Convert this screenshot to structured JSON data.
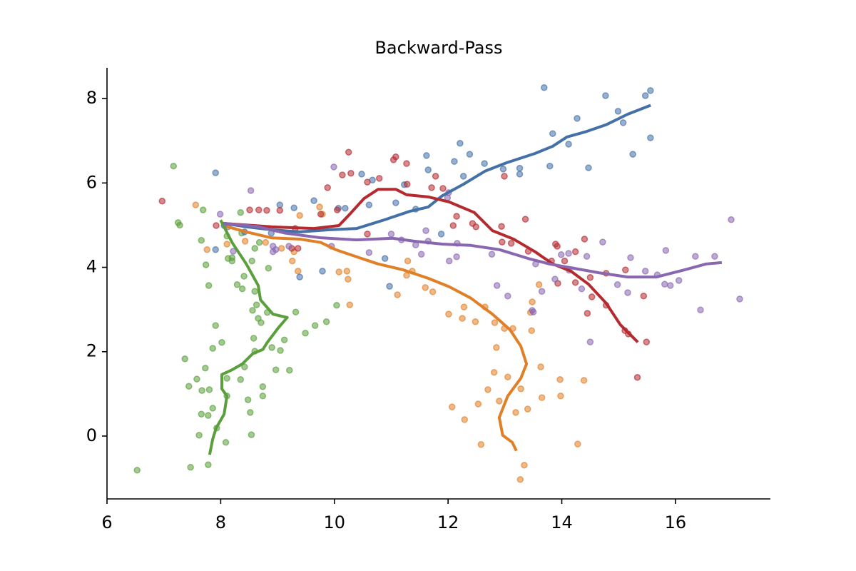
{
  "chart_data": {
    "type": "scatter",
    "title": "Backward-Pass",
    "xlim": [
      6,
      17.67
    ],
    "ylim": [
      -1.49,
      8.73
    ],
    "xticks": [
      6,
      8,
      10,
      12,
      14,
      16
    ],
    "yticks": [
      0,
      2,
      4,
      6,
      8
    ],
    "series": [
      {
        "type": "scatter",
        "color": "#5a9f3b",
        "x": [
          7.17,
          7.25,
          7.28,
          7.69,
          7.66,
          7.74,
          7.79,
          7.91,
          7.86,
          8.02,
          7.37,
          7.58,
          7.44,
          7.73,
          7.67,
          7.8,
          7.86,
          7.66,
          7.78,
          7.62,
          7.93,
          8.09,
          7.78,
          7.47,
          6.53,
          8.11,
          8.11,
          8.48,
          8.52,
          8.54,
          8.35,
          8.42,
          8.6,
          8.58,
          8.74,
          8.74,
          8.97,
          9.21,
          9.05,
          9.12,
          8.9,
          8.82,
          8.56,
          8.63,
          8.66,
          8.71,
          9.32,
          9.49,
          9.66,
          9.86,
          10.04,
          8.41,
          8.29,
          8.38,
          8.6,
          8.84,
          8.55,
          8.2,
          8.2,
          8.11,
          8.35,
          8.6,
          8.68,
          8.37,
          8.13
        ],
        "values": [
          6.4,
          5.06,
          5.0,
          5.36,
          4.64,
          4.06,
          3.57,
          2.62,
          2.08,
          2.22,
          1.83,
          1.35,
          1.18,
          1.61,
          1.08,
          1.1,
          0.66,
          0.52,
          0.49,
          0.02,
          0.19,
          -0.15,
          -0.68,
          -0.74,
          -0.81,
          1.37,
          0.95,
          0.86,
          0.56,
          0.03,
          1.34,
          1.64,
          2.01,
          2.32,
          1.17,
          0.95,
          1.57,
          1.56,
          2.03,
          2.28,
          2.1,
          2.93,
          2.98,
          3.11,
          2.79,
          2.69,
          2.94,
          2.44,
          2.62,
          2.71,
          3.1,
          3.79,
          3.59,
          3.49,
          3.43,
          3.98,
          4.15,
          4.15,
          4.23,
          4.74,
          5.3,
          4.45,
          4.59,
          4.81,
          4.21
        ]
      },
      {
        "type": "scatter",
        "color": "#e17f27",
        "x": [
          7.56,
          7.76,
          8.11,
          8.43,
          8.79,
          9.07,
          9.29,
          9.39,
          9.74,
          9.79,
          9.26,
          9.36,
          10.22,
          10.24,
          10.27,
          10.08,
          11.11,
          11.37,
          11.6,
          11.73,
          12.01,
          12.28,
          12.25,
          12.48,
          12.65,
          12.82,
          12.99,
          13.14,
          12.85,
          12.81,
          13.05,
          12.7,
          13.28,
          13.47,
          13.45,
          13.48,
          13.6,
          13.63,
          13.65,
          13.97,
          13.98,
          14.39,
          14.28,
          13.4,
          13.19,
          12.9,
          12.53,
          12.58,
          12.29,
          12.07,
          13.34,
          13.27,
          11.29,
          11.27
        ],
        "values": [
          5.48,
          4.42,
          4.55,
          4.62,
          4.59,
          4.45,
          4.37,
          5.23,
          5.43,
          5.26,
          4.15,
          3.91,
          3.91,
          3.72,
          3.11,
          3.89,
          3.35,
          3.91,
          3.52,
          3.42,
          2.89,
          3.06,
          2.79,
          2.71,
          3.06,
          2.69,
          2.55,
          2.55,
          2.1,
          1.51,
          1.4,
          1.1,
          1.12,
          2.5,
          2.93,
          3.18,
          3.59,
          1.64,
          0.91,
          1.34,
          0.95,
          1.32,
          -0.19,
          0.64,
          0.56,
          0.83,
          0.76,
          -0.2,
          0.39,
          0.69,
          -0.69,
          -1.03,
          4.15,
          3.81
        ]
      },
      {
        "type": "scatter",
        "color": "#4470a8",
        "x": [
          7.91,
          8.06,
          7.91,
          8.42,
          9.04,
          9.29,
          9.64,
          10.07,
          10.19,
          10.48,
          10.67,
          10.61,
          11.08,
          11.23,
          11.62,
          11.65,
          12.11,
          12.21,
          12.38,
          12.64,
          12.27,
          12.97,
          13.26,
          13.26,
          13.69,
          13.84,
          13.79,
          14.12,
          14.27,
          14.47,
          14.77,
          14.99,
          15.08,
          15.25,
          15.47,
          15.56,
          15.56,
          11.88,
          10.97,
          10.89,
          9.39,
          9.79,
          8.89,
          11.43
        ],
        "values": [
          6.24,
          4.99,
          4.42,
          4.84,
          5.48,
          5.41,
          5.58,
          5.4,
          5.4,
          6.21,
          6.07,
          5.48,
          5.53,
          5.96,
          6.65,
          6.31,
          6.51,
          6.94,
          6.68,
          6.46,
          6.16,
          6.33,
          6.35,
          6.21,
          8.26,
          7.17,
          6.4,
          6.92,
          7.53,
          6.36,
          8.07,
          7.7,
          7.43,
          6.68,
          8.07,
          8.19,
          7.07,
          4.79,
          3.55,
          4.21,
          3.77,
          3.91,
          4.81,
          5.38
        ]
      },
      {
        "type": "scatter",
        "color": "#b52a2f",
        "x": [
          6.97,
          7.92,
          8.51,
          8.81,
          9.04,
          9.31,
          9.25,
          9.36,
          9.88,
          10.05,
          10.25,
          10.14,
          10.29,
          10.58,
          10.79,
          11.04,
          11.08,
          11.27,
          11.28,
          11.78,
          11.71,
          11.91,
          12.09,
          12.15,
          12.43,
          12.49,
          12.99,
          12.94,
          12.95,
          13.11,
          13.36,
          13.41,
          13.82,
          13.89,
          13.93,
          13.92,
          14.05,
          14.24,
          14.4,
          14.5,
          14.53,
          14.45,
          14.78,
          14.78,
          15.12,
          15.11,
          15.17,
          15.44,
          15.49,
          15.33,
          14.24,
          10.58,
          8.67,
          9.76
        ],
        "values": [
          5.57,
          4.99,
          5.36,
          5.35,
          5.35,
          4.92,
          4.45,
          4.45,
          5.89,
          5.36,
          6.73,
          6.19,
          6.23,
          6.02,
          6.11,
          6.55,
          6.62,
          6.46,
          5.97,
          6.16,
          5.89,
          5.87,
          4.99,
          5.21,
          5.04,
          4.96,
          6.16,
          4.97,
          4.6,
          4.57,
          5.14,
          4.38,
          4.15,
          4.55,
          3.62,
          4.5,
          4.15,
          4.37,
          4.67,
          3.76,
          3.3,
          2.91,
          3.1,
          3.86,
          3.94,
          2.5,
          2.42,
          3.32,
          2.23,
          1.39,
          3.64,
          4.79,
          5.36,
          5.26
        ]
      },
      {
        "type": "scatter",
        "color": "#8966b0",
        "x": [
          7.99,
          8.53,
          8.13,
          8.22,
          8.92,
          8.92,
          8.97,
          9.2,
          9.99,
          10.61,
          11.0,
          11.18,
          11.43,
          11.53,
          11.65,
          11.61,
          12.15,
          12.02,
          12.16,
          12.01,
          11.99,
          12.77,
          12.86,
          13.05,
          13.5,
          13.48,
          13.54,
          13.65,
          13.88,
          14.13,
          14.12,
          14.35,
          14.44,
          14.5,
          14.72,
          14.98,
          15.16,
          15.21,
          15.47,
          15.83,
          15.68,
          15.81,
          15.91,
          16.06,
          16.35,
          16.44,
          16.69,
          16.98,
          17.13,
          13.99,
          9.95
        ],
        "values": [
          5.26,
          5.82,
          4.96,
          4.38,
          4.5,
          4.37,
          4.42,
          4.5,
          6.38,
          4.35,
          4.79,
          4.65,
          4.53,
          4.31,
          4.62,
          4.87,
          4.25,
          4.15,
          4.57,
          5.77,
          5.65,
          4.31,
          3.57,
          3.32,
          2.94,
          2.98,
          4.08,
          3.43,
          3.72,
          3.93,
          4.33,
          3.49,
          4.26,
          2.23,
          4.6,
          3.59,
          3.4,
          4.23,
          3.91,
          4.4,
          3.82,
          3.6,
          3.57,
          3.69,
          4.26,
          2.99,
          4.26,
          5.13,
          3.25,
          4.3,
          4.5
        ]
      },
      {
        "type": "line",
        "color": "#5a9f3b",
        "x": [
          8.01,
          8.2,
          8.45,
          8.66,
          8.7,
          8.92,
          9.17,
          9.01,
          8.82,
          8.74,
          8.57,
          8.38,
          8.2,
          8.02,
          8.02,
          8.11,
          8.06,
          7.92,
          7.86,
          7.81
        ],
        "values": [
          5.09,
          4.59,
          4.08,
          3.57,
          3.23,
          2.89,
          2.81,
          2.56,
          2.22,
          2.05,
          1.96,
          1.71,
          1.57,
          1.46,
          1.12,
          0.95,
          0.52,
          0.19,
          -0.07,
          -0.41
        ]
      },
      {
        "type": "line",
        "color": "#e17f27",
        "x": [
          8.13,
          8.45,
          8.89,
          9.39,
          9.76,
          10.02,
          10.39,
          10.77,
          11.21,
          11.65,
          12.02,
          12.4,
          12.78,
          13.09,
          13.28,
          13.38,
          13.28,
          13.05,
          12.9,
          12.96,
          13.13,
          13.19
        ],
        "values": [
          4.96,
          4.84,
          4.7,
          4.67,
          4.59,
          4.42,
          4.25,
          4.08,
          3.94,
          3.74,
          3.54,
          3.27,
          2.89,
          2.52,
          2.13,
          1.71,
          1.37,
          0.95,
          0.44,
          0.02,
          -0.15,
          -0.32
        ]
      },
      {
        "type": "line",
        "color": "#4470a8",
        "x": [
          8.07,
          8.45,
          8.89,
          9.39,
          9.89,
          10.39,
          10.89,
          11.33,
          11.65,
          11.89,
          12.27,
          12.65,
          13.03,
          13.53,
          13.84,
          14.09,
          14.41,
          14.78,
          15.16,
          15.54
        ],
        "values": [
          5.04,
          4.96,
          4.89,
          4.84,
          4.89,
          4.92,
          5.13,
          5.33,
          5.43,
          5.69,
          5.97,
          6.28,
          6.48,
          6.7,
          6.87,
          7.09,
          7.21,
          7.38,
          7.63,
          7.83
        ]
      },
      {
        "type": "line",
        "color": "#b52a2f",
        "x": [
          8.07,
          8.89,
          9.64,
          10.08,
          10.27,
          10.52,
          10.77,
          11.08,
          11.27,
          11.65,
          12.02,
          12.46,
          12.78,
          13.15,
          13.53,
          13.84,
          14.16,
          14.47,
          14.78,
          15.03,
          15.32
        ],
        "values": [
          5.04,
          4.96,
          4.92,
          4.99,
          5.26,
          5.63,
          5.85,
          5.85,
          5.72,
          5.67,
          5.55,
          5.3,
          4.87,
          4.67,
          4.37,
          4.08,
          3.91,
          3.6,
          3.15,
          2.64,
          2.25
        ]
      },
      {
        "type": "line",
        "color": "#8966b0",
        "x": [
          8.07,
          8.63,
          9.14,
          9.76,
          10.39,
          11.02,
          11.4,
          11.9,
          12.4,
          12.9,
          13.41,
          13.78,
          14.16,
          14.66,
          15.16,
          15.66,
          16.16,
          16.54,
          16.79
        ],
        "values": [
          5.04,
          4.97,
          4.81,
          4.7,
          4.65,
          4.69,
          4.62,
          4.55,
          4.52,
          4.42,
          4.21,
          4.08,
          3.99,
          3.87,
          3.77,
          3.77,
          3.94,
          4.08,
          4.11
        ]
      }
    ]
  }
}
